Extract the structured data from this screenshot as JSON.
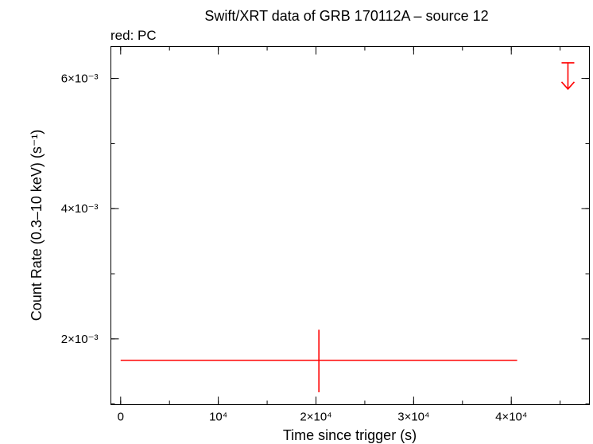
{
  "chart_data": {
    "type": "scatter",
    "title": "Swift/XRT data of GRB 170112A – source 12",
    "subtitle": "red: PC",
    "xlabel": "Time since trigger (s)",
    "ylabel": "Count Rate (0.3–10 keV) (s⁻¹)",
    "xlim": [
      -1000,
      48000
    ],
    "ylim": [
      0.00099,
      0.00649
    ],
    "x_log": false,
    "y_log": false,
    "grid": false,
    "x_ticks": [
      {
        "value": 0,
        "label": "0"
      },
      {
        "value": 10000,
        "label": "10⁴"
      },
      {
        "value": 20000,
        "label": "2×10⁴"
      },
      {
        "value": 30000,
        "label": "3×10⁴"
      },
      {
        "value": 40000,
        "label": "4×10⁴"
      }
    ],
    "y_ticks": [
      {
        "value": 0.002,
        "label": "2×10⁻³"
      },
      {
        "value": 0.004,
        "label": "4×10⁻³"
      },
      {
        "value": 0.006,
        "label": "6×10⁻³"
      }
    ],
    "x_minor_step": 5000,
    "y_minor_step": 0.001,
    "series": [
      {
        "color": "#ff0000",
        "points": [
          {
            "x": 20300,
            "y": 0.00167,
            "xerr": [
              20300,
              20300
            ],
            "yerr": [
              0.00049,
              0.00047
            ]
          }
        ],
        "upper_limits": [
          {
            "x": 45800,
            "y": 0.00624,
            "xerr": [
              0,
              0
            ]
          }
        ]
      }
    ]
  }
}
